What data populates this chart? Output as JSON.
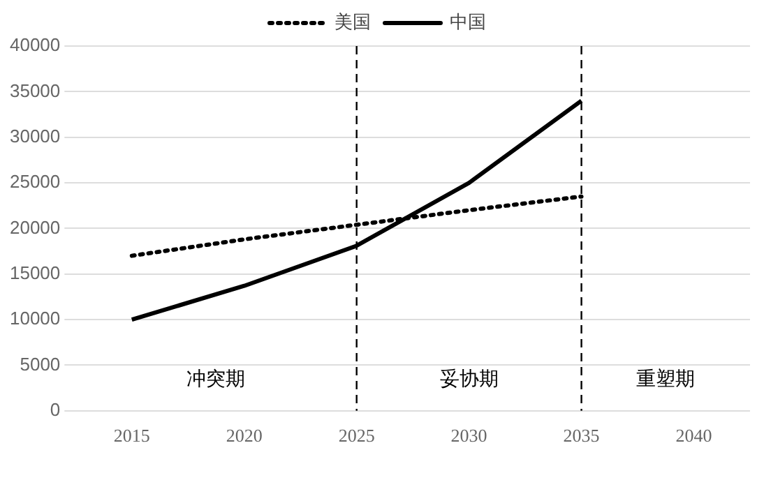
{
  "chart_data": {
    "type": "line",
    "categories": [
      "2015",
      "2020",
      "2025",
      "2030",
      "2035",
      "2040"
    ],
    "series": [
      {
        "name": "美国",
        "color": "#000000",
        "line_style": "dotted",
        "values": [
          17000,
          18800,
          20400,
          22000,
          23500,
          null
        ]
      },
      {
        "name": "中国",
        "color": "#000000",
        "line_style": "solid",
        "values": [
          10000,
          13700,
          18100,
          25000,
          34000,
          null
        ]
      }
    ],
    "ylim": [
      0,
      40000
    ],
    "yticks": [
      0,
      5000,
      10000,
      15000,
      20000,
      25000,
      30000,
      35000,
      40000
    ],
    "grid": "y",
    "legend": "top",
    "marker": "none",
    "ref_lines": [
      {
        "axis": "x",
        "value": "2025",
        "line_style": "dashed",
        "color": "#000000"
      },
      {
        "axis": "x",
        "value": "2035",
        "line_style": "dashed",
        "color": "#000000"
      }
    ],
    "annotations": [
      "冲突期",
      "妥协期",
      "重塑期"
    ]
  }
}
